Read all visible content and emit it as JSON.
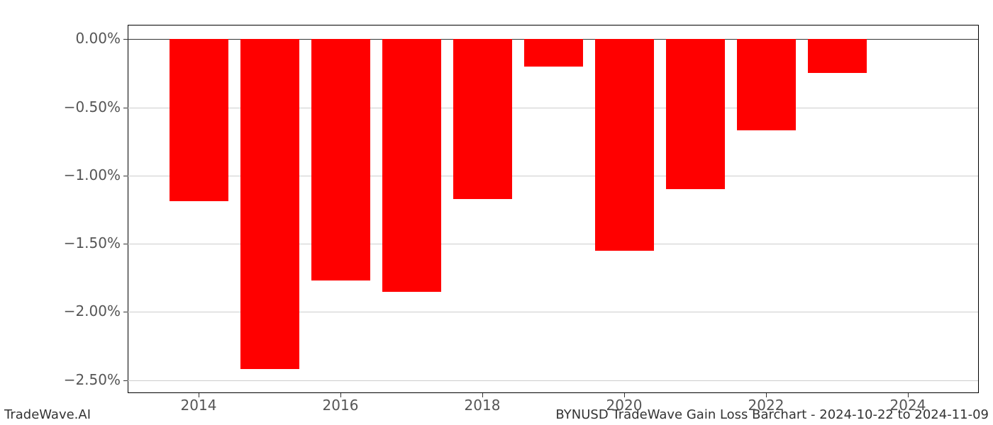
{
  "chart": {
    "type": "bar",
    "background_color": "#ffffff",
    "grid_color": "#cccccc",
    "axis_color": "#000000",
    "tick_label_color": "#555555",
    "tick_fontsize": 20,
    "bar_color": "#ff0000",
    "bar_width_years": 0.83,
    "xlim": [
      2013.0,
      2025.0
    ],
    "ylim": [
      -2.6,
      0.1
    ],
    "yticks": [
      {
        "value": 0.0,
        "label": "0.00%"
      },
      {
        "value": -0.5,
        "label": "−0.50%"
      },
      {
        "value": -1.0,
        "label": "−1.00%"
      },
      {
        "value": -1.5,
        "label": "−1.50%"
      },
      {
        "value": -2.0,
        "label": "−2.00%"
      },
      {
        "value": -2.5,
        "label": "−2.50%"
      }
    ],
    "xticks": [
      {
        "value": 2014,
        "label": "2014"
      },
      {
        "value": 2016,
        "label": "2016"
      },
      {
        "value": 2018,
        "label": "2018"
      },
      {
        "value": 2020,
        "label": "2020"
      },
      {
        "value": 2022,
        "label": "2022"
      },
      {
        "value": 2024,
        "label": "2024"
      }
    ],
    "bars": [
      {
        "year": 2014,
        "value": -1.19
      },
      {
        "year": 2015,
        "value": -2.42
      },
      {
        "year": 2016,
        "value": -1.77
      },
      {
        "year": 2017,
        "value": -1.85
      },
      {
        "year": 2018,
        "value": -1.17
      },
      {
        "year": 2019,
        "value": -0.2
      },
      {
        "year": 2020,
        "value": -1.55
      },
      {
        "year": 2021,
        "value": -1.1
      },
      {
        "year": 2022,
        "value": -0.67
      },
      {
        "year": 2023,
        "value": -0.25
      }
    ]
  },
  "footer": {
    "left": "TradeWave.AI",
    "right": "BYNUSD TradeWave Gain Loss Barchart - 2024-10-22 to 2024-11-09"
  }
}
